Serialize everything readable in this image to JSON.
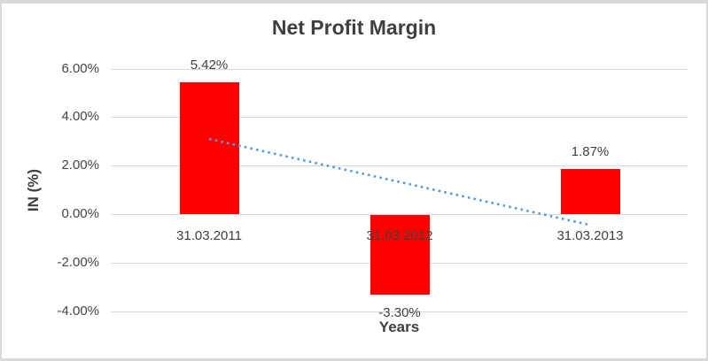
{
  "chart_data": {
    "type": "bar",
    "title": "Net Profit Margin",
    "xlabel": "Years",
    "ylabel": "IN (%)",
    "categories": [
      "31.03.2011",
      "31.03.2012",
      "31.03.2013"
    ],
    "values": [
      5.42,
      -3.3,
      1.87
    ],
    "value_labels": [
      "5.42%",
      "-3.30%",
      "1.87%"
    ],
    "ytick_values": [
      6,
      4,
      2,
      0,
      -2,
      -4
    ],
    "ytick_labels": [
      "6.00%",
      "4.00%",
      "2.00%",
      "0.00%",
      "-2.00%",
      "-4.00%"
    ],
    "ylim": [
      -4,
      6
    ],
    "grid": true,
    "legend": false,
    "bar_color": "#ff0000",
    "grid_color": "#d9d9d9",
    "text_color": "#3f3f3f",
    "trendline": {
      "type": "linear",
      "style": "dotted",
      "color": "#5b9bd5",
      "start_value": 3.1,
      "end_value": -0.45
    }
  }
}
